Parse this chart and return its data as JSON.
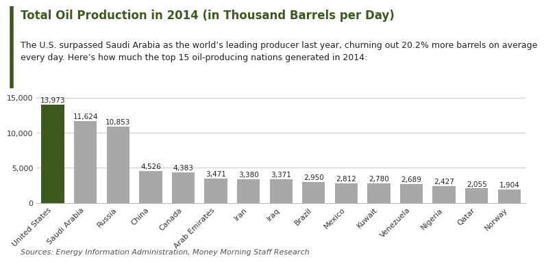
{
  "title": "Total Oil Production in 2014 (in Thousand Barrels per Day)",
  "subtitle": "The U.S. surpassed Saudi Arabia as the world’s leading producer last year, churning out 20.2% more barrels on average\nevery day. Here’s how much the top 15 oil-producing nations generated in 2014:",
  "source": "Sources: Energy Information Administration, Money Morning Staff Research",
  "categories": [
    "United States",
    "Saudi Arabia",
    "Russia",
    "China",
    "Canada",
    "Arab Emirates",
    "Iran",
    "Iraq",
    "Brazil",
    "Mexico",
    "Kuwait",
    "Venezuela",
    "Nigeria",
    "Qatar",
    "Norway"
  ],
  "values": [
    13973,
    11624,
    10853,
    4526,
    4383,
    3471,
    3380,
    3371,
    2950,
    2812,
    2780,
    2689,
    2427,
    2055,
    1904
  ],
  "bar_colors": [
    "#3d5a1e",
    "#a8a8a8",
    "#a8a8a8",
    "#a8a8a8",
    "#a8a8a8",
    "#a8a8a8",
    "#a8a8a8",
    "#a8a8a8",
    "#a8a8a8",
    "#a8a8a8",
    "#a8a8a8",
    "#a8a8a8",
    "#a8a8a8",
    "#a8a8a8",
    "#a8a8a8"
  ],
  "ylim": [
    0,
    16000
  ],
  "yticks": [
    0,
    5000,
    10000,
    15000
  ],
  "title_color": "#3d5a1e",
  "subtitle_color": "#222222",
  "source_color": "#555555",
  "value_label_color": "#222222",
  "background_color": "#ffffff",
  "grid_color": "#cccccc",
  "title_fontsize": 12,
  "subtitle_fontsize": 9,
  "source_fontsize": 8,
  "value_fontsize": 7.5,
  "tick_fontsize": 8,
  "accent_color": "#3d5a1e"
}
